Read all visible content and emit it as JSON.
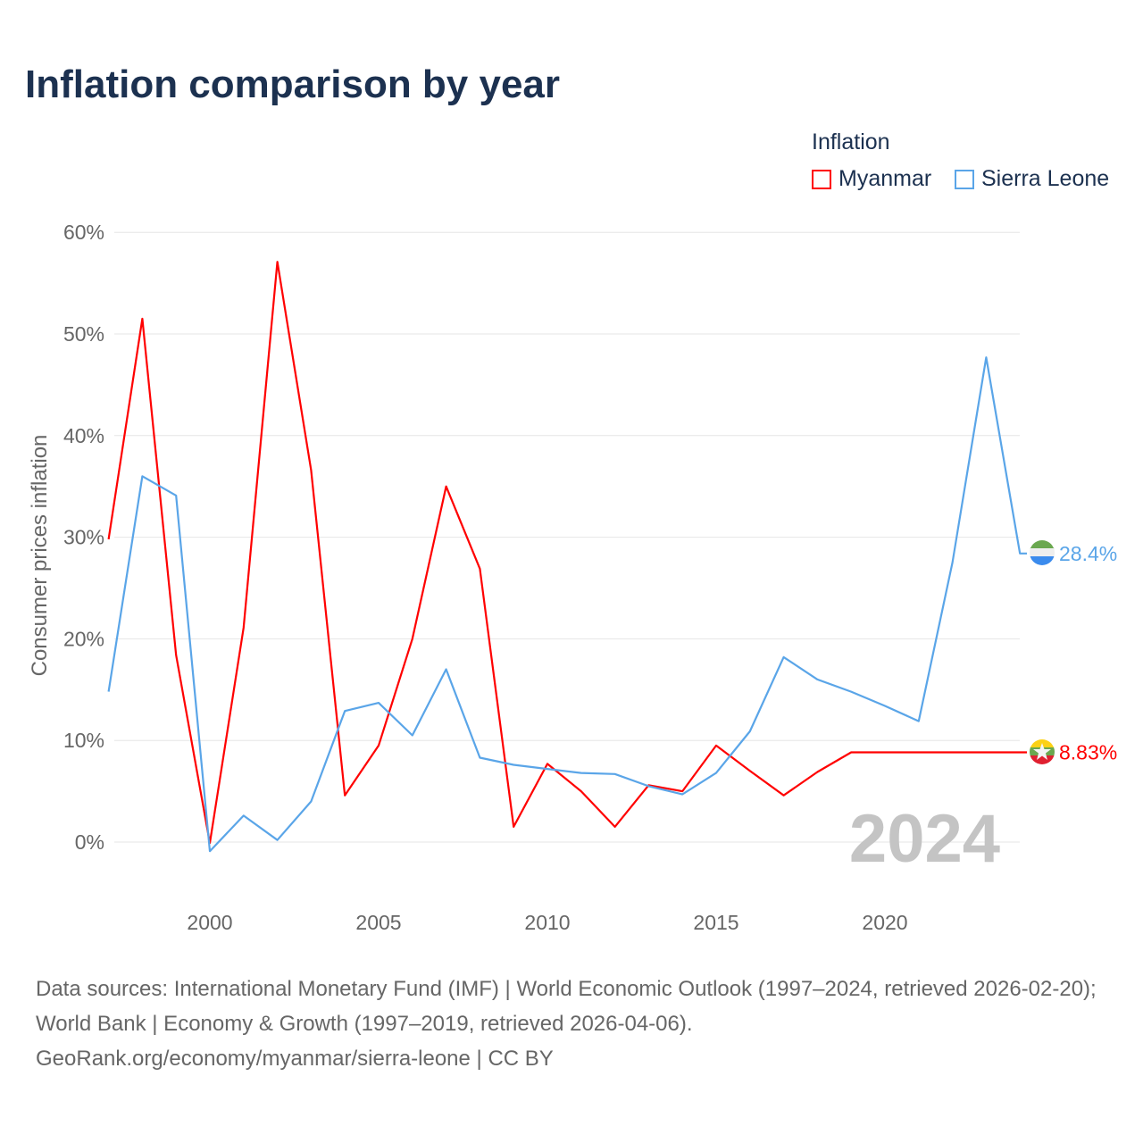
{
  "title": "Inflation comparison by year",
  "legend": {
    "title": "Inflation",
    "items": [
      "Myanmar",
      "Sierra Leone"
    ]
  },
  "watermark_year": "2024",
  "footer": {
    "sources": "Data sources: International Monetary Fund (IMF) | World Economic Outlook (1997–2024, retrieved 2026-02-20); World Bank | Economy & Growth (1997–2019, retrieved 2026-04-06).",
    "url": "GeoRank.org/economy/myanmar/sierra-leone | CC BY"
  },
  "chart_data": {
    "type": "line",
    "title": "Inflation comparison by year",
    "xlabel": "",
    "ylabel": "Consumer prices inflation",
    "xlim": [
      1997,
      2024
    ],
    "ylim": [
      -6,
      64
    ],
    "x_ticks": [
      2000,
      2005,
      2010,
      2015,
      2020
    ],
    "y_ticks": [
      0,
      10,
      20,
      30,
      40,
      50,
      60
    ],
    "y_tick_labels": [
      "0%",
      "10%",
      "20%",
      "30%",
      "40%",
      "50%",
      "60%"
    ],
    "grid": true,
    "legend_position": "top-right",
    "x": [
      1997,
      1998,
      1999,
      2000,
      2001,
      2002,
      2003,
      2004,
      2005,
      2006,
      2007,
      2008,
      2009,
      2010,
      2011,
      2012,
      2013,
      2014,
      2015,
      2016,
      2017,
      2018,
      2019,
      2020,
      2021,
      2022,
      2023,
      2024
    ],
    "series": [
      {
        "name": "Myanmar",
        "color": "#ff0000",
        "end_label": "8.83%",
        "values": [
          29.8,
          51.5,
          18.4,
          -0.1,
          21.1,
          57.1,
          36.6,
          4.6,
          9.5,
          20.0,
          35.0,
          26.9,
          1.5,
          7.7,
          5.0,
          1.5,
          5.6,
          5.0,
          9.5,
          7.0,
          4.6,
          6.9,
          8.83,
          8.83,
          8.83,
          8.83,
          8.83,
          8.83
        ]
      },
      {
        "name": "Sierra Leone",
        "color": "#5aa5e8",
        "end_label": "28.4%",
        "values": [
          14.8,
          36.0,
          34.1,
          -0.9,
          2.6,
          0.2,
          4.0,
          12.9,
          13.7,
          10.5,
          17.0,
          8.3,
          7.6,
          7.2,
          6.8,
          6.7,
          5.5,
          4.7,
          6.8,
          10.9,
          18.2,
          16.0,
          14.8,
          13.4,
          11.9,
          27.5,
          47.7,
          28.4
        ]
      }
    ]
  }
}
